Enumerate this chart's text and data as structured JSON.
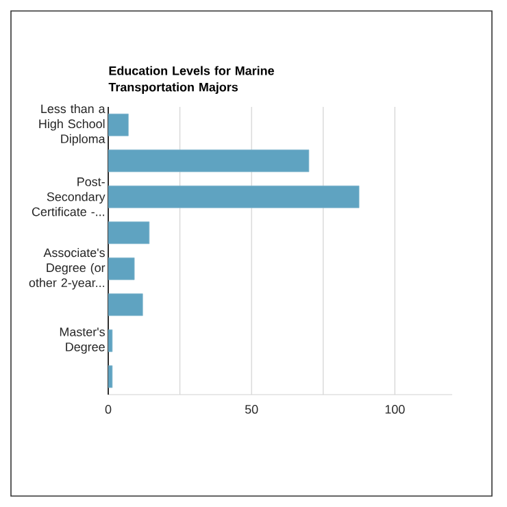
{
  "chart_data": {
    "type": "bar",
    "orientation": "horizontal",
    "title": "Education Levels for Marine Transportation Majors",
    "categories": [
      "Less than a High School Diploma",
      null,
      "Post-Secondary Certificate -...",
      null,
      "Associate's Degree (or other 2-year...",
      null,
      "Master's Degree",
      null
    ],
    "values": [
      7,
      70,
      87.5,
      14.3,
      9.1,
      12,
      1.4,
      1.4
    ],
    "color": "#5fa3c1",
    "xlim": [
      0,
      120
    ],
    "xticks": [
      0,
      {
        "value": 25,
        "label": null
      },
      50,
      {
        "value": 75,
        "label": null
      },
      100
    ],
    "grid": "x"
  }
}
